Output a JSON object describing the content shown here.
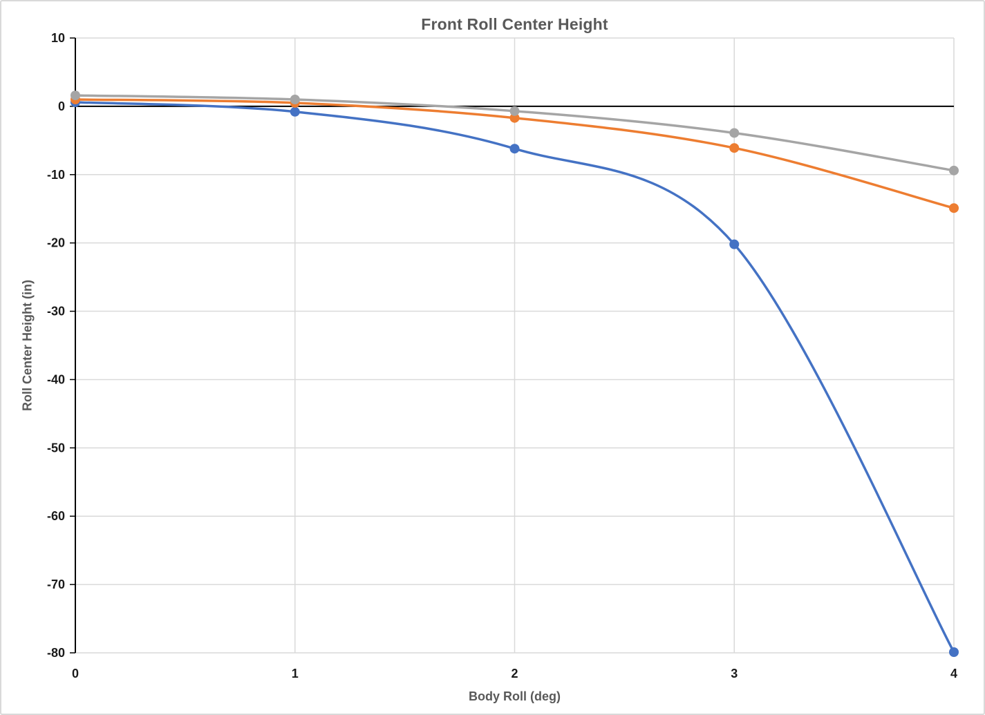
{
  "chart_data": {
    "type": "line",
    "title": "Front Roll Center Height",
    "xlabel": "Body Roll (deg)",
    "ylabel": "Roll Center Height (in)",
    "x": [
      0,
      1,
      2,
      3,
      4
    ],
    "x_ticks": [
      0,
      1,
      2,
      3,
      4
    ],
    "y_ticks": [
      10,
      0,
      -10,
      -20,
      -30,
      -40,
      -50,
      -60,
      -70,
      -80
    ],
    "xlim": [
      0,
      4
    ],
    "ylim": [
      -80,
      10
    ],
    "grid": true,
    "legend": "none",
    "smooth_lines": true,
    "series": [
      {
        "name": "blue-series",
        "color": "#4472C4",
        "values": [
          0.6,
          -0.8,
          -6.2,
          -20.2,
          -79.9
        ]
      },
      {
        "name": "orange-series",
        "color": "#ED7D31",
        "values": [
          1.0,
          0.5,
          -1.7,
          -6.1,
          -14.9
        ]
      },
      {
        "name": "gray-series",
        "color": "#A5A5A5",
        "values": [
          1.6,
          1.0,
          -0.7,
          -3.9,
          -9.4
        ]
      }
    ],
    "colors": {
      "title": "#595959",
      "axis_title": "#595959",
      "tick_label": "#1A1A1A",
      "gridline": "#D9D9D9",
      "axis_line": "#000000",
      "background": "#FFFFFF",
      "frame_border": "#D9D9D9"
    }
  }
}
